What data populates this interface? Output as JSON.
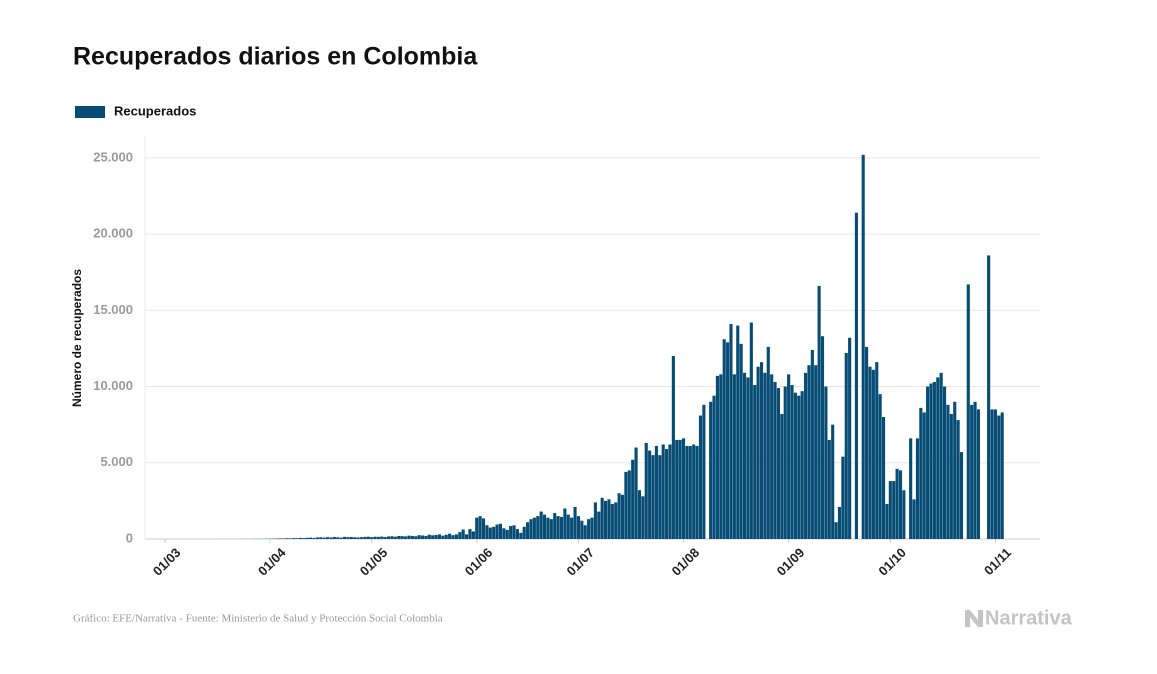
{
  "chart_data": {
    "type": "bar",
    "title": "Recuperados diarios en Colombia",
    "y_label": "Número de recuperados",
    "source": "Gráfico: EFE/Narrativa - Fuente: Ministerio de Salud y Protección Social Colombia",
    "brand": "Narrativa",
    "categories": [
      "01/03",
      null,
      null,
      null,
      null,
      null,
      null,
      null,
      null,
      null,
      null,
      null,
      null,
      null,
      null,
      null,
      null,
      null,
      null,
      null,
      null,
      null,
      null,
      null,
      null,
      null,
      null,
      null,
      null,
      null,
      null,
      "01/04",
      null,
      null,
      null,
      null,
      null,
      null,
      null,
      null,
      null,
      null,
      null,
      null,
      null,
      null,
      null,
      null,
      null,
      null,
      null,
      null,
      null,
      null,
      null,
      null,
      null,
      null,
      null,
      null,
      null,
      "01/05",
      null,
      null,
      null,
      null,
      null,
      null,
      null,
      null,
      null,
      null,
      null,
      null,
      null,
      null,
      null,
      null,
      null,
      null,
      null,
      null,
      null,
      null,
      null,
      null,
      null,
      null,
      null,
      null,
      null,
      null,
      "01/06",
      null,
      null,
      null,
      null,
      null,
      null,
      null,
      null,
      null,
      null,
      null,
      null,
      null,
      null,
      null,
      null,
      null,
      null,
      null,
      null,
      null,
      null,
      null,
      null,
      null,
      null,
      null,
      null,
      null,
      "01/07",
      null,
      null,
      null,
      null,
      null,
      null,
      null,
      null,
      null,
      null,
      null,
      null,
      null,
      null,
      null,
      null,
      null,
      null,
      null,
      null,
      null,
      null,
      null,
      null,
      null,
      null,
      null,
      null,
      null,
      null,
      "01/08",
      null,
      null,
      null,
      null,
      null,
      null,
      null,
      null,
      null,
      null,
      null,
      null,
      null,
      null,
      null,
      null,
      null,
      null,
      null,
      null,
      null,
      null,
      null,
      null,
      null,
      null,
      null,
      null,
      null,
      null,
      "01/09",
      null,
      null,
      null,
      null,
      null,
      null,
      null,
      null,
      null,
      null,
      null,
      null,
      null,
      null,
      null,
      null,
      null,
      null,
      null,
      null,
      null,
      null,
      null,
      null,
      null,
      null,
      null,
      null,
      null,
      "01/10",
      null,
      null,
      null,
      null,
      null,
      null,
      null,
      null,
      null,
      null,
      null,
      null,
      null,
      null,
      null,
      null,
      null,
      null,
      null,
      null,
      null,
      null,
      null,
      null,
      null,
      null,
      null,
      null,
      null,
      null,
      "01/11",
      null,
      null
    ],
    "series": [
      {
        "name": "Recuperados",
        "color": "#074c74",
        "values": [
          0,
          0,
          0,
          0,
          0,
          0,
          0,
          0,
          0,
          0,
          0,
          0,
          0,
          1,
          0,
          2,
          1,
          2,
          1,
          3,
          2,
          3,
          5,
          4,
          6,
          3,
          8,
          10,
          5,
          12,
          15,
          20,
          25,
          30,
          40,
          35,
          50,
          45,
          60,
          55,
          70,
          60,
          80,
          90,
          70,
          100,
          110,
          90,
          120,
          100,
          130,
          110,
          90,
          140,
          120,
          130,
          110,
          100,
          120,
          140,
          150,
          120,
          150,
          140,
          160,
          130,
          170,
          180,
          150,
          200,
          190,
          170,
          220,
          200,
          180,
          250,
          230,
          200,
          280,
          240,
          260,
          300,
          220,
          280,
          350,
          250,
          300,
          450,
          620,
          300,
          650,
          500,
          1400,
          1500,
          1350,
          900,
          750,
          800,
          950,
          1000,
          700,
          600,
          850,
          900,
          650,
          400,
          800,
          1100,
          1300,
          1400,
          1500,
          1800,
          1600,
          1400,
          1300,
          1700,
          1500,
          1450,
          2000,
          1600,
          1400,
          2100,
          1500,
          1200,
          900,
          1300,
          1400,
          2400,
          1800,
          2700,
          2500,
          2600,
          2300,
          2400,
          3000,
          2900,
          4400,
          4500,
          5200,
          6000,
          3200,
          2800,
          6300,
          5800,
          5500,
          6100,
          5500,
          6200,
          5900,
          6200,
          12000,
          6500,
          6500,
          6600,
          6100,
          6100,
          6200,
          6100,
          8100,
          8800,
          0,
          9000,
          9400,
          10700,
          10800,
          13100,
          12900,
          14100,
          10800,
          14000,
          12800,
          10900,
          10600,
          14200,
          10100,
          11300,
          11600,
          10900,
          12600,
          10800,
          10300,
          9900,
          8200,
          10000,
          10800,
          10100,
          9600,
          9400,
          9700,
          10900,
          11400,
          12400,
          11400,
          16600,
          13300,
          10000,
          6500,
          7500,
          1100,
          2100,
          5400,
          12200,
          13200,
          0,
          21400,
          0,
          25200,
          12600,
          11300,
          11100,
          11600,
          9500,
          8000,
          2300,
          3800,
          3800,
          4600,
          4500,
          3200,
          0,
          6600,
          2600,
          6600,
          8600,
          8300,
          10000,
          10200,
          10300,
          10600,
          10900,
          10000,
          8800,
          8200,
          9000,
          7800,
          5700,
          0,
          16700,
          8800,
          9000,
          8500,
          0,
          0,
          18600,
          8500,
          8500,
          8100,
          8300
        ]
      }
    ],
    "ylim": [
      0,
      26500
    ],
    "yticks": [
      0,
      {
        "value": 5000,
        "label": "5.000"
      },
      {
        "value": 10000,
        "label": "10.000"
      },
      {
        "value": 15000,
        "label": "15.000"
      },
      {
        "value": 20000,
        "label": "20.000"
      },
      {
        "value": 25000,
        "label": "25.000"
      }
    ],
    "grid": true,
    "legend": "top-left"
  }
}
